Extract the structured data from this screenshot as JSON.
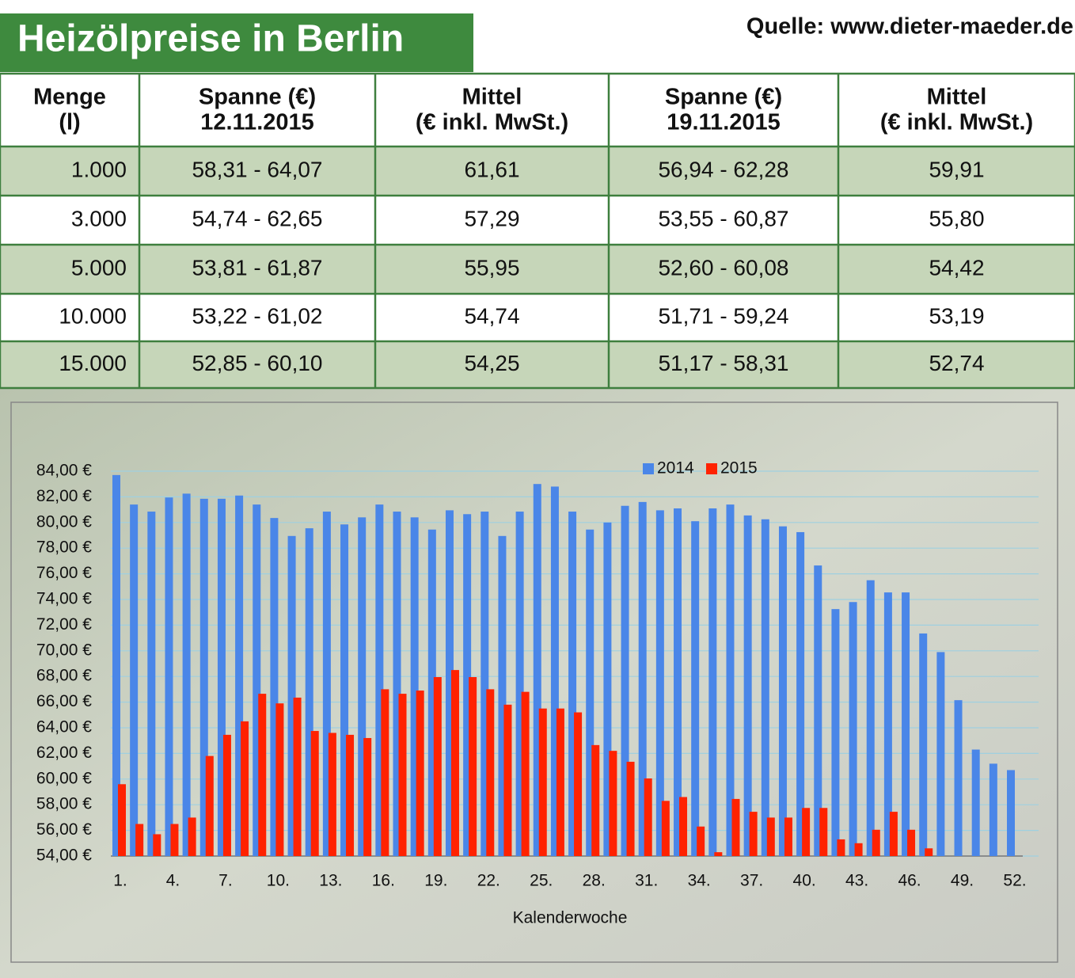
{
  "header": {
    "title": "Heizölpreise in Berlin",
    "source": "Quelle: www.dieter-maeder.de"
  },
  "table": {
    "columns": [
      [
        "Menge",
        "(l)"
      ],
      [
        "Spanne (€)",
        "12.11.2015"
      ],
      [
        "Mittel",
        "(€ inkl. MwSt.)"
      ],
      [
        "Spanne (€)",
        "19.11.2015"
      ],
      [
        "Mittel",
        "(€ inkl. MwSt.)"
      ]
    ],
    "rows": [
      [
        "1.000",
        "58,31 - 64,07",
        "61,61",
        "56,94 - 62,28",
        "59,91"
      ],
      [
        "3.000",
        "54,74 - 62,65",
        "57,29",
        "53,55 - 60,87",
        "55,80"
      ],
      [
        "5.000",
        "53,81 - 61,87",
        "55,95",
        "52,60 - 60,08",
        "54,42"
      ],
      [
        "10.000",
        "53,22 - 61,02",
        "54,74",
        "51,71 - 59,24",
        "53,19"
      ],
      [
        "15.000",
        "52,85 - 60,10",
        "54,25",
        "51,17 - 58,31",
        "52,74"
      ]
    ]
  },
  "chart_data": {
    "type": "bar",
    "x_label": "Kalenderwoche",
    "legend": "top",
    "grid": true,
    "categories": [
      "1.",
      null,
      null,
      "4.",
      null,
      null,
      "7.",
      null,
      null,
      "10.",
      null,
      null,
      "13.",
      null,
      null,
      "16.",
      null,
      null,
      "19.",
      null,
      null,
      "22.",
      null,
      null,
      "25.",
      null,
      null,
      "28.",
      null,
      null,
      "31.",
      null,
      null,
      "34.",
      null,
      null,
      "37.",
      null,
      null,
      "40.",
      null,
      null,
      "43.",
      null,
      null,
      "46.",
      null,
      null,
      "49.",
      null,
      null,
      "52."
    ],
    "series": [
      {
        "name": "2014",
        "color": "#4a86e8",
        "values": [
          83.7,
          81.4,
          80.85,
          81.95,
          82.25,
          81.85,
          81.85,
          82.1,
          81.4,
          80.35,
          78.95,
          79.55,
          80.85,
          79.85,
          80.4,
          81.4,
          80.85,
          80.4,
          79.45,
          80.95,
          80.65,
          80.85,
          78.95,
          80.85,
          83.0,
          82.8,
          80.85,
          79.45,
          80.0,
          81.3,
          81.6,
          80.95,
          81.1,
          80.1,
          81.1,
          81.4,
          80.55,
          80.25,
          79.7,
          79.25,
          76.65,
          73.25,
          73.8,
          75.5,
          74.55,
          74.55,
          71.35,
          69.9,
          66.15,
          62.3,
          61.2,
          60.7
        ]
      },
      {
        "name": "2015",
        "color": "#ff2200",
        "values": [
          59.6,
          56.5,
          55.7,
          56.5,
          57.0,
          61.8,
          63.45,
          64.5,
          66.65,
          65.9,
          66.35,
          63.75,
          63.6,
          63.45,
          63.2,
          67.0,
          66.65,
          66.9,
          67.95,
          68.5,
          67.95,
          67.0,
          65.8,
          66.8,
          65.5,
          65.5,
          65.2,
          62.65,
          62.2,
          61.35,
          60.05,
          58.3,
          58.6,
          56.3,
          54.3,
          58.45,
          57.45,
          57.0,
          57.0,
          57.75,
          57.75,
          55.3,
          55.0,
          56.05,
          57.45,
          56.05,
          54.6,
          null,
          null,
          null,
          null,
          null
        ]
      }
    ],
    "ylim": [
      54,
      84
    ],
    "yticks": [
      {
        "value": 54,
        "label": "54,00 €"
      },
      {
        "value": 56,
        "label": "56,00 €"
      },
      {
        "value": 58,
        "label": "58,00 €"
      },
      {
        "value": 60,
        "label": "60,00 €"
      },
      {
        "value": 62,
        "label": "62,00 €"
      },
      {
        "value": 64,
        "label": "64,00 €"
      },
      {
        "value": 66,
        "label": "66,00 €"
      },
      {
        "value": 68,
        "label": "68,00 €"
      },
      {
        "value": 70,
        "label": "70,00 €"
      },
      {
        "value": 72,
        "label": "72,00 €"
      },
      {
        "value": 74,
        "label": "74,00 €"
      },
      {
        "value": 76,
        "label": "76,00 €"
      },
      {
        "value": 78,
        "label": "78,00 €"
      },
      {
        "value": 80,
        "label": "80,00 €"
      },
      {
        "value": 82,
        "label": "82,00 €"
      },
      {
        "value": 84,
        "label": "84,00 €"
      }
    ]
  }
}
